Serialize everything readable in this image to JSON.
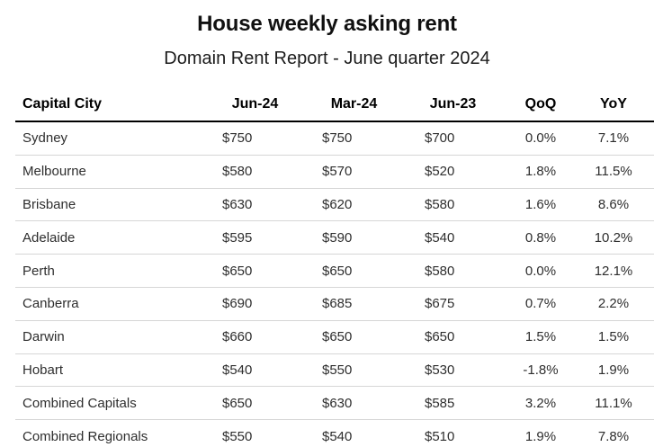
{
  "title": "House weekly asking rent",
  "subtitle": "Domain Rent Report - June quarter 2024",
  "chart_data": {
    "type": "table",
    "title": "House weekly asking rent",
    "subtitle": "Domain Rent Report - June quarter 2024",
    "columns": [
      "Capital City",
      "Jun-24",
      "Mar-24",
      "Jun-23",
      "QoQ",
      "YoY"
    ],
    "rows": [
      [
        "Sydney",
        "$750",
        "$750",
        "$700",
        "0.0%",
        "7.1%"
      ],
      [
        "Melbourne",
        "$580",
        "$570",
        "$520",
        "1.8%",
        "11.5%"
      ],
      [
        "Brisbane",
        "$630",
        "$620",
        "$580",
        "1.6%",
        "8.6%"
      ],
      [
        "Adelaide",
        "$595",
        "$590",
        "$540",
        "0.8%",
        "10.2%"
      ],
      [
        "Perth",
        "$650",
        "$650",
        "$580",
        "0.0%",
        "12.1%"
      ],
      [
        "Canberra",
        "$690",
        "$685",
        "$675",
        "0.7%",
        "2.2%"
      ],
      [
        "Darwin",
        "$660",
        "$650",
        "$650",
        "1.5%",
        "1.5%"
      ],
      [
        "Hobart",
        "$540",
        "$550",
        "$530",
        "-1.8%",
        "1.9%"
      ],
      [
        "Combined Capitals",
        "$650",
        "$630",
        "$585",
        "3.2%",
        "11.1%"
      ],
      [
        "Combined Regionals",
        "$550",
        "$540",
        "$510",
        "1.9%",
        "7.8%"
      ]
    ]
  },
  "colors": {
    "background": "#ffffff",
    "title_text": "#111111",
    "body_text": "#2e2e2e",
    "header_rule": "#000000",
    "row_rule": "#d6d6d6"
  }
}
